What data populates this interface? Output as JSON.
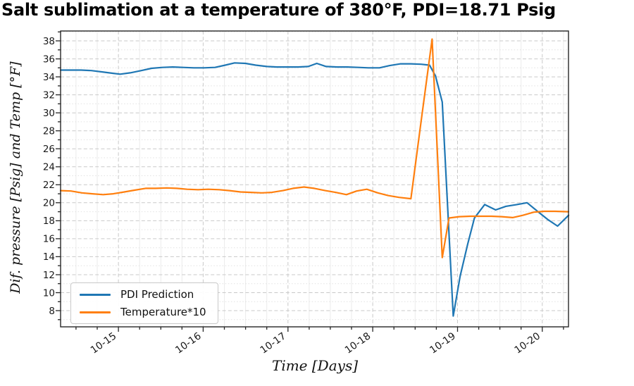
{
  "colors": {
    "background": "#ffffff",
    "axes_spine": "#262626",
    "tick_label": "#1a1a1a",
    "grid_major": "#c9c9c9",
    "grid_minor_v": "#ebebeb",
    "grid_minor_h": "#e2e2e2",
    "pdi_line": "#1f77b4",
    "temperature_line": "#ff7f0e"
  },
  "chart_data": {
    "type": "line",
    "title": "Salt sublimation at a temperature of 380°F, PDI=18.71 Psig",
    "xlabel": "Time [Days]",
    "ylabel": "Dif. pressure [Psig] and Temp [°F]",
    "xlim": [
      0.318,
      6.309
    ],
    "ylim": [
      6.2,
      39.1
    ],
    "x_tick_positions": [
      1,
      2,
      3,
      4,
      5,
      6
    ],
    "x_tick_labels": [
      "10-15",
      "10-16",
      "10-17",
      "10-18",
      "10-19",
      "10-20"
    ],
    "x_minor_step": 0.25,
    "y_ticks": [
      8,
      10,
      12,
      14,
      16,
      18,
      20,
      22,
      24,
      26,
      28,
      30,
      32,
      34,
      36,
      38
    ],
    "y_minor_ticks": [
      7,
      9,
      11,
      13,
      15,
      17,
      19,
      21,
      23,
      25,
      27,
      29,
      31,
      33,
      35,
      37,
      39
    ],
    "grid": {
      "major": true,
      "minor": true
    },
    "legend": {
      "position": "lower-left"
    },
    "series": [
      {
        "name": "PDI Prediction",
        "color": "#1f77b4",
        "points": [
          [
            0.318,
            34.75
          ],
          [
            0.44,
            34.75
          ],
          [
            0.56,
            34.75
          ],
          [
            0.68,
            34.7
          ],
          [
            0.81,
            34.55
          ],
          [
            0.93,
            34.4
          ],
          [
            1.02,
            34.3
          ],
          [
            1.14,
            34.45
          ],
          [
            1.27,
            34.7
          ],
          [
            1.39,
            34.95
          ],
          [
            1.52,
            35.05
          ],
          [
            1.64,
            35.1
          ],
          [
            1.76,
            35.05
          ],
          [
            1.89,
            35.0
          ],
          [
            2.01,
            35.0
          ],
          [
            2.14,
            35.05
          ],
          [
            2.26,
            35.3
          ],
          [
            2.37,
            35.55
          ],
          [
            2.5,
            35.5
          ],
          [
            2.62,
            35.3
          ],
          [
            2.75,
            35.15
          ],
          [
            2.87,
            35.1
          ],
          [
            3.0,
            35.1
          ],
          [
            3.12,
            35.1
          ],
          [
            3.24,
            35.15
          ],
          [
            3.34,
            35.5
          ],
          [
            3.45,
            35.15
          ],
          [
            3.58,
            35.1
          ],
          [
            3.7,
            35.1
          ],
          [
            3.83,
            35.05
          ],
          [
            3.95,
            35.0
          ],
          [
            4.08,
            35.0
          ],
          [
            4.2,
            35.25
          ],
          [
            4.33,
            35.45
          ],
          [
            4.45,
            35.45
          ],
          [
            4.57,
            35.4
          ],
          [
            4.67,
            35.3
          ],
          [
            4.74,
            34.1
          ],
          [
            4.82,
            31.2
          ],
          [
            4.95,
            7.4
          ],
          [
            5.03,
            11.8
          ],
          [
            5.12,
            15.4
          ],
          [
            5.2,
            18.3
          ],
          [
            5.32,
            19.8
          ],
          [
            5.45,
            19.2
          ],
          [
            5.57,
            19.6
          ],
          [
            5.7,
            19.8
          ],
          [
            5.82,
            20.0
          ],
          [
            5.95,
            19.0
          ],
          [
            6.07,
            18.1
          ],
          [
            6.18,
            17.4
          ],
          [
            6.31,
            18.6
          ]
        ]
      },
      {
        "name": "Temperature*10",
        "color": "#ff7f0e",
        "points": [
          [
            0.318,
            21.35
          ],
          [
            0.44,
            21.3
          ],
          [
            0.57,
            21.1
          ],
          [
            0.69,
            21.0
          ],
          [
            0.82,
            20.9
          ],
          [
            0.94,
            21.0
          ],
          [
            1.07,
            21.2
          ],
          [
            1.19,
            21.4
          ],
          [
            1.32,
            21.6
          ],
          [
            1.44,
            21.6
          ],
          [
            1.57,
            21.65
          ],
          [
            1.69,
            21.6
          ],
          [
            1.81,
            21.5
          ],
          [
            1.94,
            21.45
          ],
          [
            2.06,
            21.5
          ],
          [
            2.19,
            21.45
          ],
          [
            2.31,
            21.35
          ],
          [
            2.44,
            21.2
          ],
          [
            2.56,
            21.15
          ],
          [
            2.69,
            21.1
          ],
          [
            2.81,
            21.15
          ],
          [
            2.94,
            21.35
          ],
          [
            3.06,
            21.6
          ],
          [
            3.19,
            21.75
          ],
          [
            3.31,
            21.6
          ],
          [
            3.44,
            21.35
          ],
          [
            3.56,
            21.15
          ],
          [
            3.69,
            20.9
          ],
          [
            3.81,
            21.3
          ],
          [
            3.93,
            21.5
          ],
          [
            4.06,
            21.1
          ],
          [
            4.18,
            20.8
          ],
          [
            4.31,
            20.6
          ],
          [
            4.45,
            20.45
          ],
          [
            4.57,
            29.0
          ],
          [
            4.7,
            38.2
          ],
          [
            4.82,
            13.9
          ],
          [
            4.9,
            18.3
          ],
          [
            5.02,
            18.45
          ],
          [
            5.15,
            18.5
          ],
          [
            5.27,
            18.5
          ],
          [
            5.4,
            18.5
          ],
          [
            5.52,
            18.45
          ],
          [
            5.65,
            18.35
          ],
          [
            5.77,
            18.6
          ],
          [
            5.9,
            18.95
          ],
          [
            6.02,
            19.05
          ],
          [
            6.15,
            19.05
          ],
          [
            6.31,
            19.0
          ]
        ]
      }
    ]
  }
}
